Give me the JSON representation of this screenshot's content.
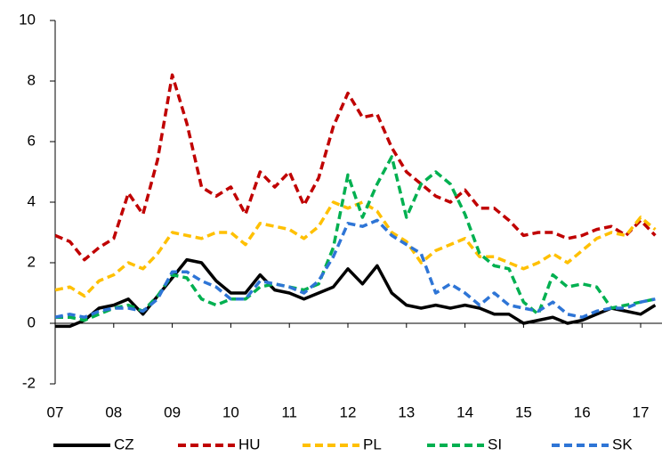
{
  "chart_data": {
    "type": "line",
    "x": [
      7,
      7.25,
      7.5,
      7.75,
      8,
      8.25,
      8.5,
      8.75,
      9,
      9.25,
      9.5,
      9.75,
      10,
      10.25,
      10.5,
      10.75,
      11,
      11.25,
      11.5,
      11.75,
      12,
      12.25,
      12.5,
      12.75,
      13,
      13.25,
      13.5,
      13.75,
      14,
      14.25,
      14.5,
      14.75,
      15,
      15.25,
      15.5,
      15.75,
      16,
      16.25,
      16.5,
      16.75,
      17,
      17.25
    ],
    "xlim": [
      7,
      17.35
    ],
    "xticks": [
      {
        "value": 7,
        "label": "07"
      },
      {
        "value": 8,
        "label": "08"
      },
      {
        "value": 9,
        "label": "09"
      },
      10,
      11,
      12,
      13,
      14,
      15,
      16,
      17
    ],
    "ylim": [
      -2,
      10
    ],
    "yticks": [
      -2,
      0,
      2,
      4,
      6,
      8,
      10
    ],
    "series": [
      {
        "name": "CZ",
        "color": "#000000",
        "dashed": false,
        "values": [
          -0.1,
          -0.1,
          0.1,
          0.5,
          0.6,
          0.8,
          0.3,
          0.9,
          1.5,
          2.1,
          2.0,
          1.4,
          1.0,
          1.0,
          1.6,
          1.1,
          1.0,
          0.8,
          1.0,
          1.2,
          1.8,
          1.3,
          1.9,
          1.0,
          0.6,
          0.5,
          0.6,
          0.5,
          0.6,
          0.5,
          0.3,
          0.3,
          0.0,
          0.1,
          0.2,
          0.0,
          0.1,
          0.3,
          0.5,
          0.4,
          0.3,
          0.6
        ]
      },
      {
        "name": "HU",
        "color": "#c00000",
        "dashed": true,
        "values": [
          2.9,
          2.7,
          2.1,
          2.5,
          2.8,
          4.3,
          3.6,
          5.4,
          8.2,
          6.6,
          4.5,
          4.2,
          4.5,
          3.6,
          5.0,
          4.5,
          5.0,
          3.9,
          4.8,
          6.5,
          7.6,
          6.8,
          6.9,
          5.8,
          5.0,
          4.6,
          4.2,
          4.0,
          4.4,
          3.8,
          3.8,
          3.4,
          2.9,
          3.0,
          3.0,
          2.8,
          2.9,
          3.1,
          3.2,
          2.9,
          3.4,
          2.9
        ]
      },
      {
        "name": "PL",
        "color": "#ffc000",
        "dashed": true,
        "values": [
          1.1,
          1.2,
          0.9,
          1.4,
          1.6,
          2.0,
          1.8,
          2.3,
          3.0,
          2.9,
          2.8,
          3.0,
          3.0,
          2.6,
          3.3,
          3.2,
          3.1,
          2.8,
          3.2,
          4.0,
          3.8,
          4.0,
          3.7,
          3.0,
          2.7,
          2.0,
          2.4,
          2.6,
          2.8,
          2.2,
          2.2,
          2.0,
          1.8,
          2.0,
          2.3,
          2.0,
          2.4,
          2.8,
          3.0,
          2.9,
          3.5,
          3.1
        ]
      },
      {
        "name": "SI",
        "color": "#00b050",
        "dashed": true,
        "values": [
          0.2,
          0.2,
          0.1,
          0.3,
          0.5,
          0.6,
          0.4,
          0.9,
          1.6,
          1.5,
          0.8,
          0.6,
          0.8,
          0.8,
          1.2,
          1.3,
          1.2,
          1.1,
          1.3,
          2.5,
          4.9,
          3.5,
          4.6,
          5.5,
          3.5,
          4.6,
          5.0,
          4.6,
          3.6,
          2.3,
          1.9,
          1.8,
          0.7,
          0.3,
          1.6,
          1.2,
          1.3,
          1.2,
          0.5,
          0.6,
          0.7,
          0.8
        ]
      },
      {
        "name": "SK",
        "color": "#2e75d6",
        "dashed": true,
        "values": [
          0.2,
          0.3,
          0.2,
          0.4,
          0.5,
          0.5,
          0.4,
          0.8,
          1.7,
          1.7,
          1.4,
          1.2,
          0.8,
          0.8,
          1.4,
          1.3,
          1.2,
          1.0,
          1.4,
          2.2,
          3.3,
          3.2,
          3.4,
          2.9,
          2.6,
          2.3,
          1.0,
          1.3,
          1.0,
          0.6,
          1.0,
          0.6,
          0.5,
          0.4,
          0.7,
          0.3,
          0.2,
          0.4,
          0.5,
          0.5,
          0.7,
          0.8
        ]
      }
    ]
  }
}
